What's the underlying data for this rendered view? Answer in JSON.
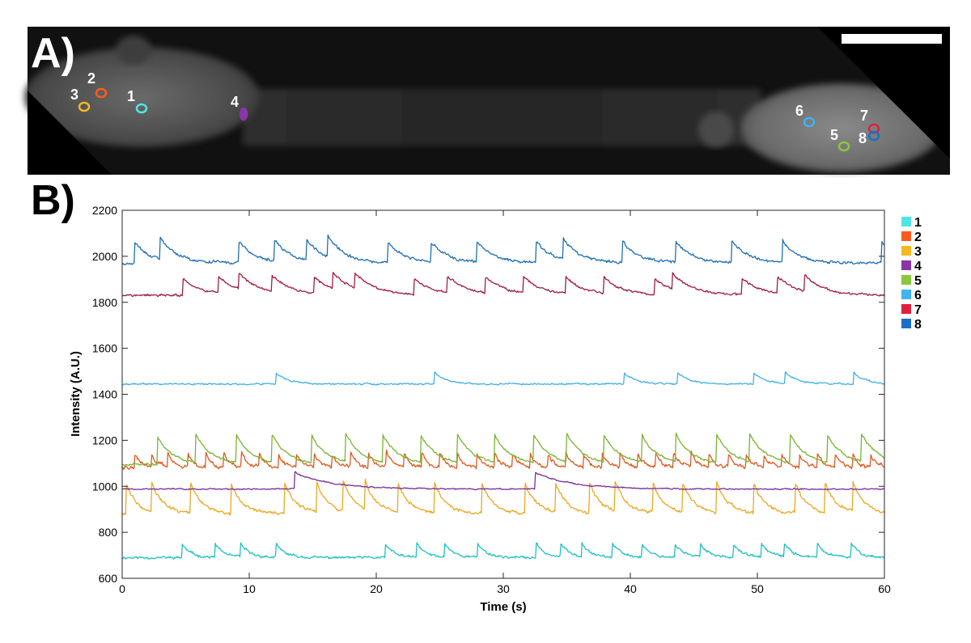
{
  "panel_a": {
    "label": "A)",
    "rois": [
      {
        "id": "1",
        "color": "#4de6e6"
      },
      {
        "id": "2",
        "color": "#ff5a1e"
      },
      {
        "id": "3",
        "color": "#f5b820"
      },
      {
        "id": "4",
        "color": "#8a35a8"
      },
      {
        "id": "5",
        "color": "#8cc63c"
      },
      {
        "id": "6",
        "color": "#3eb4f0"
      },
      {
        "id": "7",
        "color": "#e0203c"
      },
      {
        "id": "8",
        "color": "#1a6fc8"
      }
    ]
  },
  "panel_b": {
    "label": "B)"
  },
  "chart_data": {
    "type": "line",
    "title": "",
    "xlabel": "Time (s)",
    "ylabel": "Intensity (A.U.)",
    "xlim": [
      0,
      60
    ],
    "ylim": [
      600,
      2200
    ],
    "x_ticks": [
      0,
      10,
      20,
      30,
      40,
      50,
      60
    ],
    "y_ticks": [
      600,
      800,
      1000,
      1200,
      1400,
      1600,
      1800,
      2000,
      2200
    ],
    "grid": false,
    "legend_position": "right",
    "series": [
      {
        "name": "1",
        "color": "#20c0c0",
        "swatch": "#4de6e6",
        "baseline": 690,
        "spike_height": 60,
        "decay": 0.7,
        "noise": 8,
        "seed": 11,
        "spikes": [
          4.7,
          7.3,
          9.3,
          12.1,
          20.7,
          23.2,
          25.4,
          28.0,
          32.6,
          34.5,
          36.2,
          38.6,
          40.9,
          43.5,
          45.5,
          48.1,
          50.3,
          52.1,
          54.7,
          57.4
        ]
      },
      {
        "name": "2",
        "color": "#e05a1e",
        "swatch": "#ff5a1e",
        "baseline": 1080,
        "spike_height": 60,
        "decay": 0.5,
        "noise": 12,
        "seed": 22,
        "spikes": [
          1.0,
          2.3,
          3.6,
          5.2,
          6.6,
          8.0,
          9.4,
          10.8,
          12.3,
          13.7,
          15.1,
          16.5,
          18.0,
          19.4,
          20.8,
          22.2,
          23.6,
          25.0,
          26.4,
          27.9,
          29.3,
          30.7,
          32.1,
          33.5,
          34.9,
          36.3,
          37.8,
          39.2,
          40.6,
          42.0,
          43.4,
          44.8,
          46.2,
          47.7,
          49.1,
          50.5,
          51.9,
          53.3,
          54.7,
          56.1,
          57.5,
          58.9
        ]
      },
      {
        "name": "3",
        "color": "#eba820",
        "swatch": "#f5b820",
        "baseline": 880,
        "spike_height": 130,
        "decay": 0.9,
        "noise": 10,
        "seed": 33,
        "spikes": [
          0.3,
          2.3,
          5.4,
          8.6,
          12.8,
          15.3,
          17.4,
          19.1,
          21.7,
          24.6,
          28.3,
          31.7,
          34.1,
          36.8,
          38.8,
          41.8,
          44.1,
          46.8,
          49.7,
          53.0,
          55.3,
          57.5
        ]
      },
      {
        "name": "4",
        "color": "#7a2d98",
        "swatch": "#8a35a8",
        "baseline": 988,
        "spike_height": 72,
        "decay": 2.8,
        "noise": 4,
        "seed": 44,
        "spikes": [
          13.6,
          32.5
        ]
      },
      {
        "name": "5",
        "color": "#78b432",
        "swatch": "#8cc63c",
        "baseline": 1095,
        "spike_height": 120,
        "decay": 1.2,
        "noise": 7,
        "seed": 55,
        "spikes": [
          2.8,
          5.8,
          9.0,
          11.8,
          14.9,
          17.6,
          20.5,
          23.5,
          26.4,
          29.3,
          32.4,
          35.0,
          37.9,
          40.9,
          43.6,
          46.8,
          49.4,
          52.6,
          55.5,
          58.2
        ]
      },
      {
        "name": "6",
        "color": "#40b0e6",
        "swatch": "#3eb4f0",
        "baseline": 1445,
        "spike_height": 50,
        "decay": 0.9,
        "noise": 5,
        "seed": 66,
        "spikes": [
          12.1,
          24.6,
          39.5,
          43.7,
          49.7,
          52.2,
          57.6
        ]
      },
      {
        "name": "7",
        "color": "#9e1e3c",
        "swatch": "#e0203c",
        "baseline": 1830,
        "spike_height": 70,
        "decay": 1.5,
        "noise": 7,
        "seed": 77,
        "spikes": [
          4.8,
          7.6,
          9.2,
          11.8,
          15.1,
          16.6,
          18.3,
          23.0,
          25.6,
          28.6,
          31.6,
          34.9,
          37.9,
          41.9,
          43.3,
          48.8,
          51.6,
          53.7
        ]
      },
      {
        "name": "8",
        "color": "#1f6fb4",
        "swatch": "#1a6fc8",
        "baseline": 1970,
        "spike_height": 90,
        "decay": 1.3,
        "noise": 9,
        "seed": 88,
        "spikes": [
          1.0,
          3.0,
          9.2,
          12.0,
          14.5,
          16.2,
          20.9,
          24.3,
          27.9,
          32.6,
          34.7,
          39.4,
          43.6,
          48.0,
          52.0,
          59.8
        ]
      }
    ]
  }
}
